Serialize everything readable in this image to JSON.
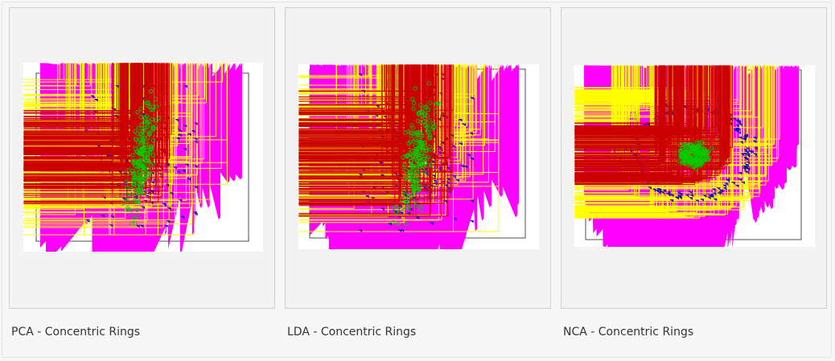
{
  "gallery": {
    "items": [
      {
        "caption": "PCA - Concentric Rings"
      },
      {
        "caption": "LDA - Concentric Rings"
      },
      {
        "caption": "NCA - Concentric Rings"
      }
    ]
  },
  "chart_data": [
    {
      "type": "scatter",
      "title": "",
      "xlabel": "",
      "ylabel": "",
      "grid": false,
      "projection": "PCA",
      "series": [
        {
          "color": "#ff00ff",
          "marker": "diamond",
          "count": 200,
          "layout": "dispersed",
          "x_range": [
            -1.0,
            1.0
          ],
          "y_range": [
            -1.0,
            1.0
          ]
        },
        {
          "color": "#ffff00",
          "marker": "plus",
          "count": 200,
          "layout": "dispersed",
          "x_range": [
            -0.85,
            0.85
          ],
          "y_range": [
            -1.0,
            1.0
          ]
        },
        {
          "color": "#0000cc",
          "marker": "triangle-down",
          "count": 200,
          "layout": "dispersed",
          "x_range": [
            -0.55,
            0.55
          ],
          "y_range": [
            -0.9,
            0.9
          ]
        },
        {
          "color": "#cc0000",
          "marker": "plus",
          "count": 200,
          "layout": "dispersed",
          "x_range": [
            -0.3,
            0.3
          ],
          "y_range": [
            -0.6,
            0.6
          ]
        },
        {
          "color": "#00cc00",
          "marker": "circle",
          "count": 200,
          "layout": "elongated",
          "x_range": [
            -0.12,
            0.12
          ],
          "y_range": [
            -0.85,
            0.85
          ]
        }
      ]
    },
    {
      "type": "scatter",
      "title": "",
      "xlabel": "",
      "ylabel": "",
      "grid": false,
      "projection": "LDA",
      "series": [
        {
          "color": "#ff00ff",
          "marker": "diamond",
          "count": 200,
          "layout": "dispersed",
          "x_range": [
            -1.0,
            1.0
          ],
          "y_range": [
            -1.0,
            1.0
          ]
        },
        {
          "color": "#ffff00",
          "marker": "plus",
          "count": 200,
          "layout": "dispersed",
          "x_range": [
            -0.8,
            0.8
          ],
          "y_range": [
            -1.0,
            1.0
          ]
        },
        {
          "color": "#0000cc",
          "marker": "triangle-down",
          "count": 200,
          "layout": "dispersed",
          "x_range": [
            -0.55,
            0.55
          ],
          "y_range": [
            -1.0,
            1.0
          ]
        },
        {
          "color": "#cc0000",
          "marker": "plus",
          "count": 200,
          "layout": "dispersed",
          "x_range": [
            -0.35,
            0.35
          ],
          "y_range": [
            -0.8,
            0.8
          ]
        },
        {
          "color": "#00cc00",
          "marker": "circle",
          "count": 200,
          "layout": "elongated",
          "x_range": [
            -0.15,
            0.15
          ],
          "y_range": [
            -0.9,
            0.9
          ]
        }
      ]
    },
    {
      "type": "scatter",
      "title": "",
      "xlabel": "",
      "ylabel": "",
      "grid": false,
      "projection": "NCA",
      "series": [
        {
          "color": "#ff00ff",
          "marker": "diamond",
          "count": 200,
          "layout": "ring",
          "radius": 1.0
        },
        {
          "color": "#ffff00",
          "marker": "plus",
          "count": 200,
          "layout": "ring",
          "radius": 0.78
        },
        {
          "color": "#0000cc",
          "marker": "triangle-down",
          "count": 200,
          "layout": "ring",
          "radius": 0.56
        },
        {
          "color": "#cc0000",
          "marker": "plus",
          "count": 200,
          "layout": "ring",
          "radius": 0.33
        },
        {
          "color": "#00cc00",
          "marker": "circle",
          "count": 200,
          "layout": "ring",
          "radius": 0.1
        }
      ]
    }
  ]
}
